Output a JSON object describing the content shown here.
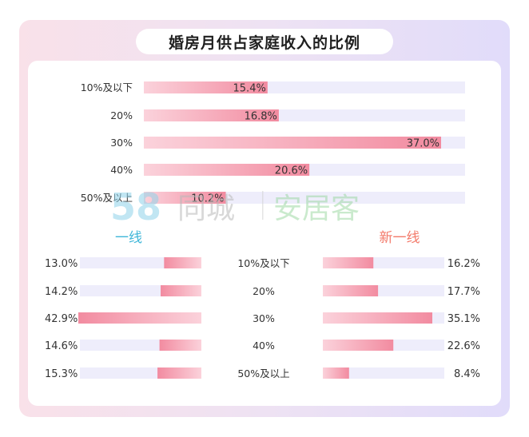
{
  "title": "婚房月供占家庭收入的比例",
  "watermark": {
    "number": "58",
    "brand1": "同城",
    "brand2": "安居客"
  },
  "colors": {
    "bar_light": "#fbc7d2",
    "bar_dark": "#f28ba0",
    "track": "#eeedfb",
    "left_head": "#3fb6d8",
    "right_head": "#f37a6a"
  },
  "chart_data": [
    {
      "type": "bar",
      "orientation": "horizontal",
      "categories": [
        "10%及以下",
        "20%",
        "30%",
        "40%",
        "50%及以上"
      ],
      "values": [
        15.4,
        16.8,
        37.0,
        20.6,
        10.2
      ],
      "labels": [
        "15.4%",
        "16.8%",
        "37.0%",
        "20.6%",
        "10.2%"
      ],
      "xlim": [
        0,
        40
      ]
    },
    {
      "type": "bar",
      "orientation": "horizontal",
      "series_label": "一线",
      "categories": [
        "10%及以下",
        "20%",
        "30%",
        "40%",
        "50%及以上"
      ],
      "values": [
        13.0,
        14.2,
        42.9,
        14.6,
        15.3
      ],
      "labels": [
        "13.0%",
        "14.2%",
        "42.9%",
        "14.6%",
        "15.3%"
      ],
      "xlim": [
        0,
        43
      ]
    },
    {
      "type": "bar",
      "orientation": "horizontal",
      "series_label": "新一线",
      "categories": [
        "10%及以下",
        "20%",
        "30%",
        "40%",
        "50%及以上"
      ],
      "values": [
        16.2,
        17.7,
        35.1,
        22.6,
        8.4
      ],
      "labels": [
        "16.2%",
        "17.7%",
        "35.1%",
        "22.6%",
        "8.4%"
      ],
      "xlim": [
        0,
        41
      ]
    }
  ]
}
